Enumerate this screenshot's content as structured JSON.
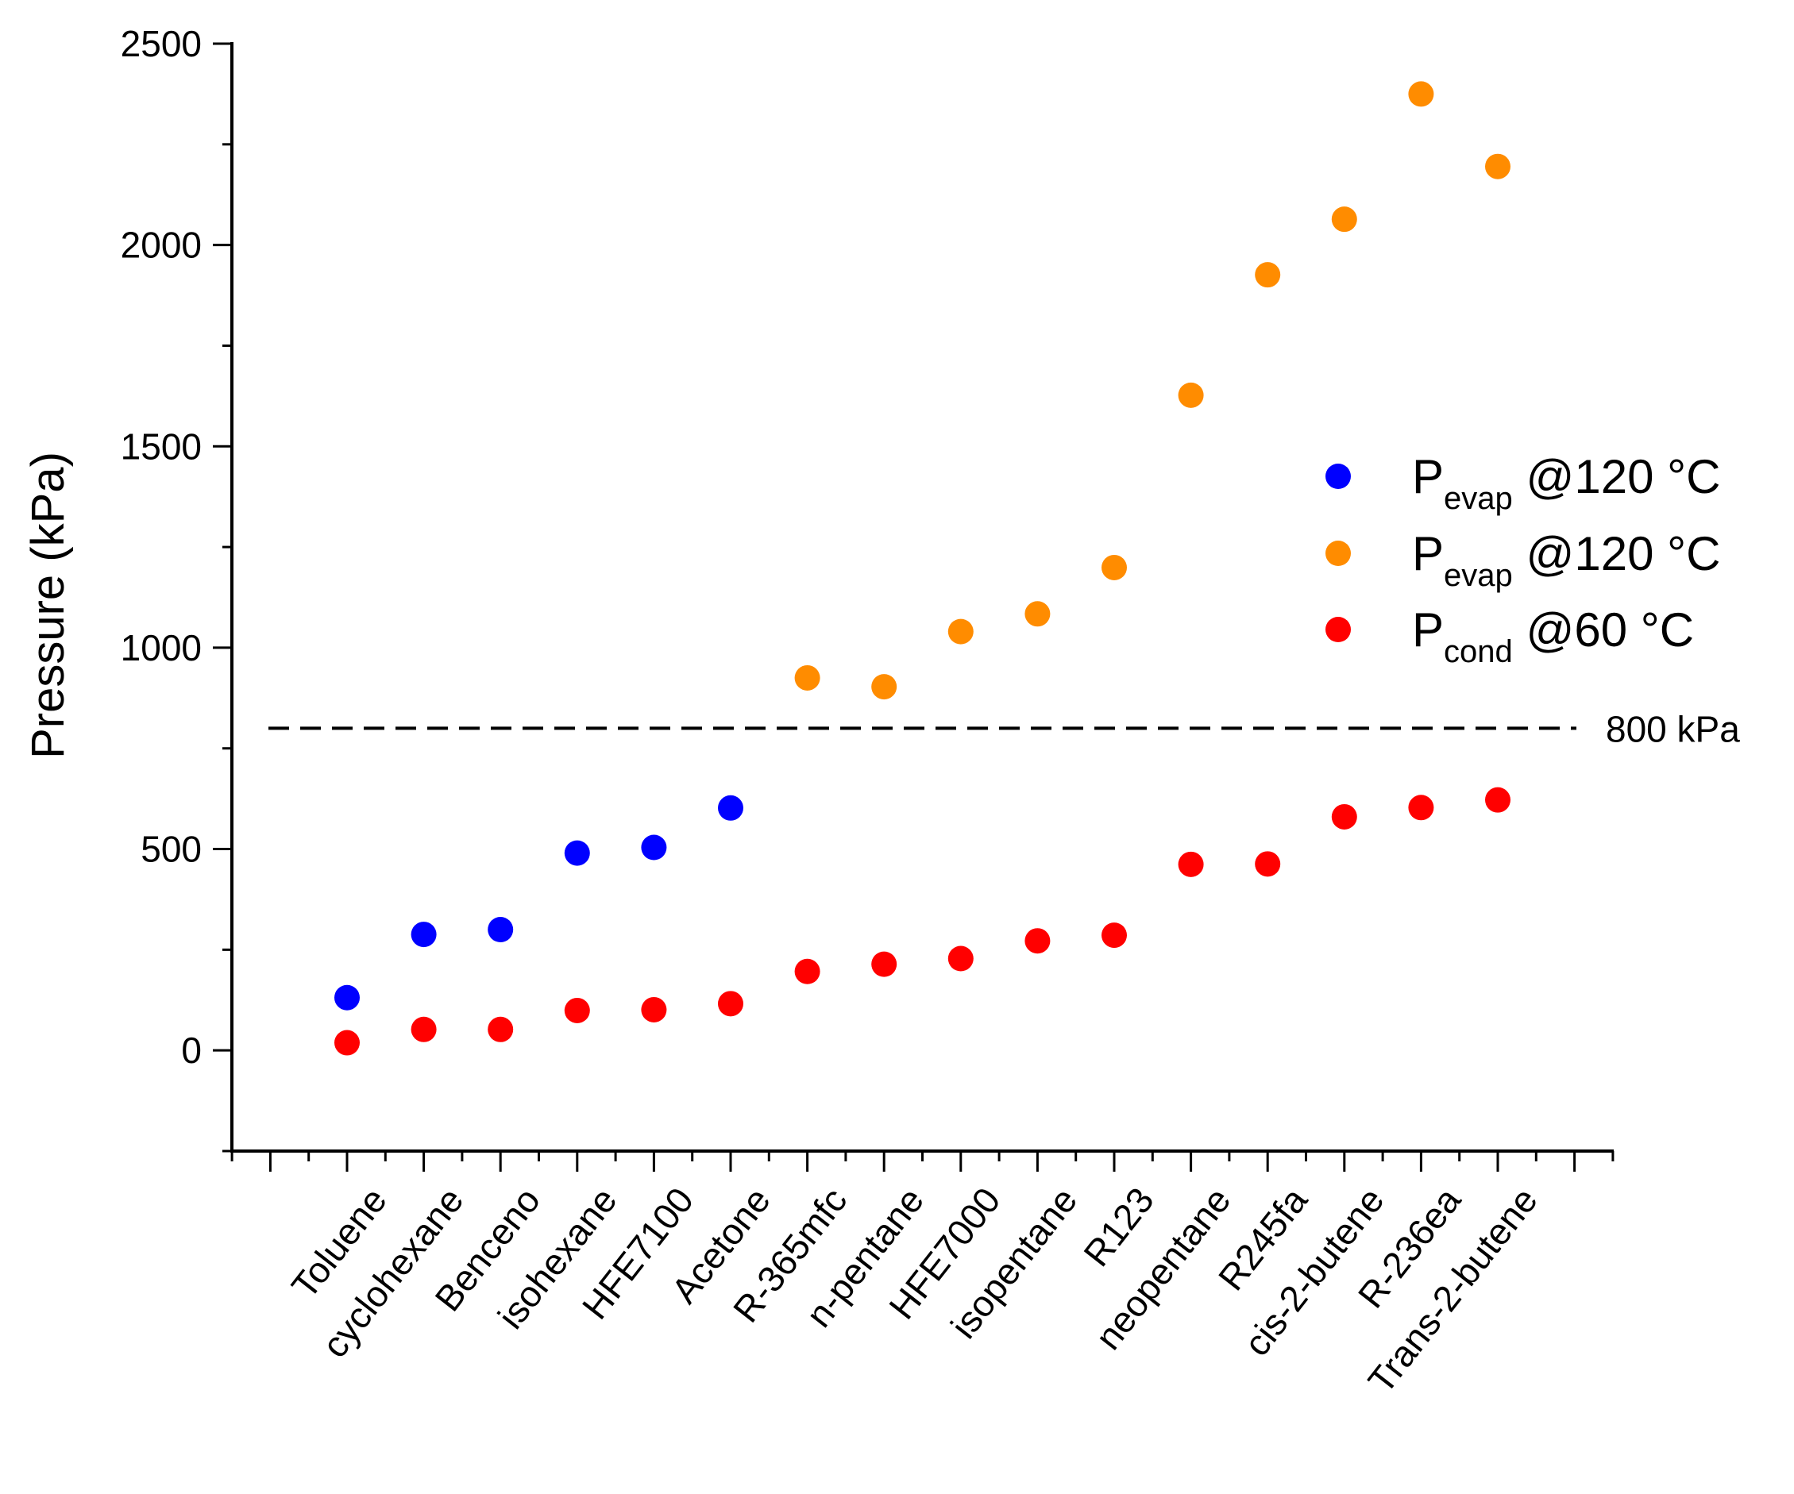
{
  "chart_data": {
    "type": "scatter",
    "title": "",
    "xlabel": "",
    "ylabel": "Pressure (kPa)",
    "ylim": [
      -250,
      2500
    ],
    "yticks": [
      0,
      500,
      1000,
      1500,
      2000,
      2500
    ],
    "categories": [
      "Toluene",
      "cyclohexane",
      "Benceno",
      "isohexane",
      "HFE7100",
      "Acetone",
      "R-365mfc",
      "n-pentane",
      "HFE7000",
      "isopentane",
      "R123",
      "neopentane",
      "R245fa",
      "cis-2-butene",
      "R-236ea",
      "Trans-2-butene"
    ],
    "series": [
      {
        "name": "Pevap @120 °C",
        "legend_main": "P",
        "legend_sub": "evap",
        "legend_rest": " @120 °C",
        "color": "#0000ff",
        "points": [
          {
            "category": "Toluene",
            "value": 131
          },
          {
            "category": "cyclohexane",
            "value": 288
          },
          {
            "category": "Benceno",
            "value": 300
          },
          {
            "category": "isohexane",
            "value": 490
          },
          {
            "category": "HFE7100",
            "value": 504
          },
          {
            "category": "Acetone",
            "value": 602
          }
        ]
      },
      {
        "name": "Pevap @120 °C",
        "legend_main": "P",
        "legend_sub": "evap",
        "legend_rest": " @120 °C",
        "color": "#ff8c00",
        "points": [
          {
            "category": "R-365mfc",
            "value": 925
          },
          {
            "category": "n-pentane",
            "value": 903
          },
          {
            "category": "HFE7000",
            "value": 1040
          },
          {
            "category": "isopentane",
            "value": 1084
          },
          {
            "category": "R123",
            "value": 1199
          },
          {
            "category": "neopentane",
            "value": 1627
          },
          {
            "category": "R245fa",
            "value": 1926
          },
          {
            "category": "cis-2-butene",
            "value": 2064
          },
          {
            "category": "R-236ea",
            "value": 2375
          },
          {
            "category": "Trans-2-butene",
            "value": 2195
          }
        ]
      },
      {
        "name": "Pcond @60 °C",
        "legend_main": "P",
        "legend_sub": "cond",
        "legend_rest": " @60 °C",
        "color": "#ff0000",
        "points": [
          {
            "category": "Toluene",
            "value": 19
          },
          {
            "category": "cyclohexane",
            "value": 52
          },
          {
            "category": "Benceno",
            "value": 52
          },
          {
            "category": "isohexane",
            "value": 99
          },
          {
            "category": "HFE7100",
            "value": 101
          },
          {
            "category": "Acetone",
            "value": 116
          },
          {
            "category": "R-365mfc",
            "value": 196
          },
          {
            "category": "n-pentane",
            "value": 214
          },
          {
            "category": "HFE7000",
            "value": 228
          },
          {
            "category": "isopentane",
            "value": 272
          },
          {
            "category": "R123",
            "value": 286
          },
          {
            "category": "neopentane",
            "value": 462
          },
          {
            "category": "R245fa",
            "value": 463
          },
          {
            "category": "cis-2-butene",
            "value": 580
          },
          {
            "category": "R-236ea",
            "value": 603
          },
          {
            "category": "Trans-2-butene",
            "value": 622
          }
        ]
      }
    ],
    "reference_line": {
      "value": 800,
      "label": "800 kPa",
      "style": "dashed"
    },
    "legend_position": "right"
  }
}
